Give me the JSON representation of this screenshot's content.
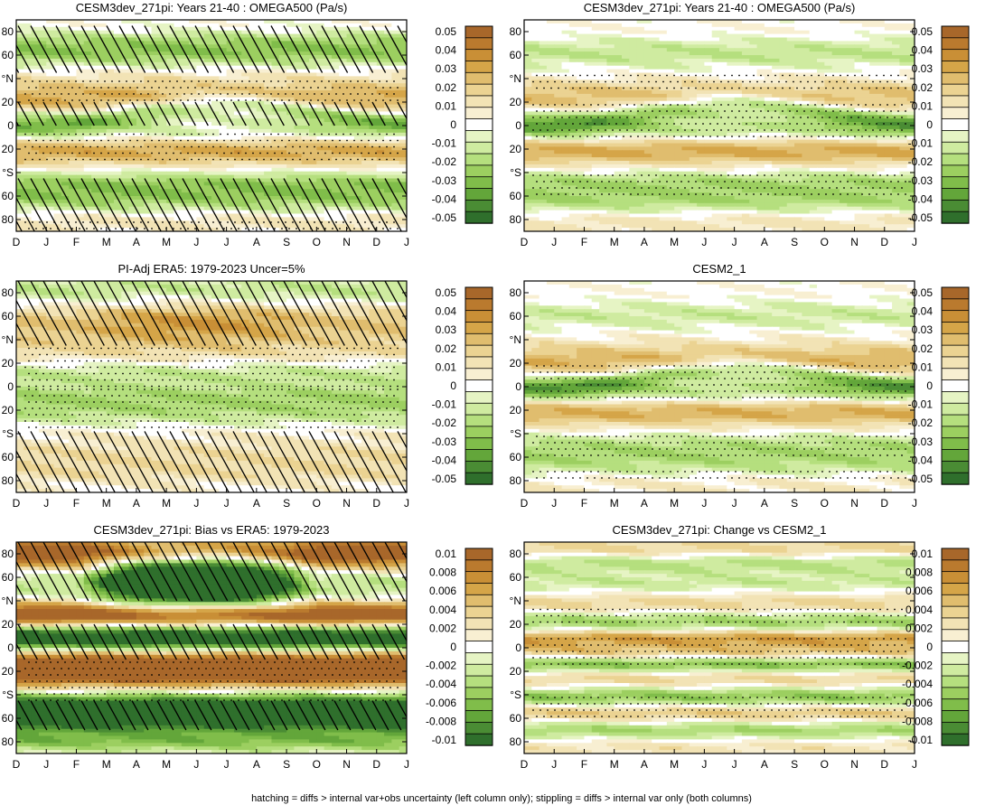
{
  "footer": "hatching = diffs > internal var+obs uncertainty (left column only); stippling = diffs > internal var only (both columns)",
  "colors": {
    "brown": [
      "#a8672a",
      "#ba7a2e",
      "#c98f36",
      "#d5a548",
      "#e0bd6e",
      "#ebd392",
      "#f2e3b5",
      "#f8efd2"
    ],
    "white": "#ffffff",
    "green": [
      "#e6f4c4",
      "#cfeba0",
      "#b5df7e",
      "#9ccf60",
      "#80bd4a",
      "#63a63a",
      "#4a8c34",
      "#2f6f2c"
    ]
  },
  "chart_data": [
    {
      "type": "heatmap",
      "title": "CESM3dev_271pi: Years 21-40 : OMEGA500 (Pa/s)",
      "xticks": [
        "D",
        "J",
        "F",
        "M",
        "A",
        "M",
        "J",
        "J",
        "A",
        "S",
        "O",
        "N",
        "D",
        "J"
      ],
      "yticks": [
        "80",
        "60",
        "°N",
        "20",
        "0",
        "20",
        "°S",
        "60",
        "80"
      ],
      "colorbar": [
        "0.05",
        "0.04",
        "0.03",
        "0.02",
        "0.01",
        "0",
        "-0.01",
        "-0.02",
        "-0.03",
        "-0.04",
        "-0.05"
      ],
      "vmax": 0.05,
      "bands": [
        {
          "lat": 82,
          "w": 6,
          "v": 0.005
        },
        {
          "lat": 70,
          "w": 10,
          "v": -0.012
        },
        {
          "lat": 60,
          "w": 10,
          "v": -0.018
        },
        {
          "lat": 48,
          "w": 8,
          "v": 0.008
        },
        {
          "lat": 34,
          "w": 8,
          "v": 0.004
        },
        {
          "lat": 22,
          "w": 10,
          "v": 0.025
        },
        {
          "lat": 10,
          "w": 7,
          "v": -0.03,
          "mig": 8
        },
        {
          "lat": -8,
          "w": 8,
          "v": -0.018
        },
        {
          "lat": -20,
          "w": 10,
          "v": 0.032
        },
        {
          "lat": -36,
          "w": 6,
          "v": 0.003
        },
        {
          "lat": -50,
          "w": 10,
          "v": -0.02
        },
        {
          "lat": -65,
          "w": 10,
          "v": -0.015
        },
        {
          "lat": -80,
          "w": 8,
          "v": 0.012
        }
      ],
      "hatch": [
        [
          45,
          85
        ],
        [
          0,
          20
        ],
        [
          -90,
          -45
        ]
      ],
      "stipple": [
        [
          20,
          40
        ],
        [
          -30,
          -5
        ],
        [
          -90,
          -80
        ]
      ]
    },
    {
      "type": "heatmap",
      "title": "CESM3dev_271pi: Years 21-40 : OMEGA500 (Pa/s)",
      "xticks": [
        "D",
        "J",
        "F",
        "M",
        "A",
        "M",
        "J",
        "J",
        "A",
        "S",
        "O",
        "N",
        "D",
        "J"
      ],
      "yticks": [
        "80",
        "60",
        "°N",
        "20",
        "0",
        "20",
        "°S",
        "60",
        "80"
      ],
      "colorbar": [
        "0.05",
        "0.04",
        "0.03",
        "0.02",
        "0.01",
        "0",
        "-0.01",
        "-0.02",
        "-0.03",
        "-0.04",
        "-0.05"
      ],
      "vmax": 0.05,
      "bands": [
        {
          "lat": 80,
          "w": 6,
          "v": 0.004
        },
        {
          "lat": 60,
          "w": 12,
          "v": -0.012
        },
        {
          "lat": 46,
          "w": 8,
          "v": 0.004
        },
        {
          "lat": 24,
          "w": 10,
          "v": 0.022
        },
        {
          "lat": 10,
          "w": 7,
          "v": -0.03,
          "mig": 8
        },
        {
          "lat": -6,
          "w": 8,
          "v": -0.02
        },
        {
          "lat": -20,
          "w": 10,
          "v": 0.03
        },
        {
          "lat": -36,
          "w": 6,
          "v": 0.002
        },
        {
          "lat": -50,
          "w": 10,
          "v": -0.018
        },
        {
          "lat": -66,
          "w": 8,
          "v": -0.012
        },
        {
          "lat": -82,
          "w": 8,
          "v": 0.01
        }
      ],
      "hatch": [],
      "stipple": [
        [
          -10,
          20
        ],
        [
          -60,
          -40
        ],
        [
          30,
          45
        ]
      ]
    },
    {
      "type": "heatmap",
      "title": "PI-Adj ERA5: 1979-2023 Uncer=5%",
      "xticks": [
        "D",
        "J",
        "F",
        "M",
        "A",
        "M",
        "J",
        "J",
        "A",
        "S",
        "O",
        "N",
        "D",
        "J"
      ],
      "yticks": [
        "80",
        "60",
        "°N",
        "20",
        "0",
        "20",
        "°S",
        "60",
        "80"
      ],
      "colorbar": [
        "0.05",
        "0.04",
        "0.03",
        "0.02",
        "0.01",
        "0",
        "-0.01",
        "-0.02",
        "-0.03",
        "-0.04",
        "-0.05"
      ],
      "vmax": 0.05,
      "bands": [
        {
          "lat": 80,
          "w": 10,
          "v": -0.015
        },
        {
          "lat": 55,
          "w": 14,
          "v": 0.02,
          "seas": 0.012
        },
        {
          "lat": 30,
          "w": 10,
          "v": 0.008
        },
        {
          "lat": 12,
          "w": 7,
          "v": -0.012
        },
        {
          "lat": -8,
          "w": 8,
          "v": -0.016
        },
        {
          "lat": -22,
          "w": 8,
          "v": -0.012
        },
        {
          "lat": -40,
          "w": 6,
          "v": 0.002
        },
        {
          "lat": -55,
          "w": 10,
          "v": 0.008
        },
        {
          "lat": -72,
          "w": 10,
          "v": 0.01
        }
      ],
      "hatch": [
        [
          35,
          90
        ],
        [
          -90,
          -38
        ]
      ],
      "stipple": [
        [
          0,
          35
        ],
        [
          -40,
          0
        ]
      ]
    },
    {
      "type": "heatmap",
      "title": "CESM2_1",
      "xticks": [
        "D",
        "J",
        "F",
        "M",
        "A",
        "M",
        "J",
        "J",
        "A",
        "S",
        "O",
        "N",
        "D",
        "J"
      ],
      "yticks": [
        "80",
        "60",
        "°N",
        "20",
        "0",
        "20",
        "°S",
        "60",
        "80"
      ],
      "colorbar": [
        "0.05",
        "0.04",
        "0.03",
        "0.02",
        "0.01",
        "0",
        "-0.01",
        "-0.02",
        "-0.03",
        "-0.04",
        "-0.05"
      ],
      "vmax": 0.05,
      "bands": [
        {
          "lat": 78,
          "w": 6,
          "v": 0.003
        },
        {
          "lat": 60,
          "w": 10,
          "v": -0.01
        },
        {
          "lat": 44,
          "w": 8,
          "v": 0.003
        },
        {
          "lat": 22,
          "w": 10,
          "v": 0.024
        },
        {
          "lat": 8,
          "w": 6,
          "v": -0.03,
          "mig": 8
        },
        {
          "lat": -6,
          "w": 8,
          "v": -0.022
        },
        {
          "lat": -20,
          "w": 10,
          "v": 0.028
        },
        {
          "lat": -36,
          "w": 6,
          "v": 0.002
        },
        {
          "lat": -52,
          "w": 10,
          "v": -0.016
        },
        {
          "lat": -68,
          "w": 8,
          "v": -0.01
        },
        {
          "lat": -82,
          "w": 8,
          "v": 0.008
        }
      ],
      "hatch": [],
      "stipple": [
        [
          -10,
          20
        ],
        [
          -60,
          -40
        ],
        [
          -80,
          -70
        ]
      ]
    },
    {
      "type": "heatmap",
      "title": "CESM3dev_271pi: Bias vs ERA5: 1979-2023",
      "xticks": [
        "D",
        "J",
        "F",
        "M",
        "A",
        "M",
        "J",
        "J",
        "A",
        "S",
        "O",
        "N",
        "D",
        "J"
      ],
      "yticks": [
        "80",
        "60",
        "°N",
        "20",
        "0",
        "20",
        "°S",
        "60",
        "80"
      ],
      "colorbar": [
        "0.01",
        "0.008",
        "0.006",
        "0.004",
        "0.002",
        "0",
        "-0.002",
        "-0.004",
        "-0.006",
        "-0.008",
        "-0.01"
      ],
      "vmax": 0.01,
      "bands": [
        {
          "lat": 80,
          "w": 10,
          "v": 0.012
        },
        {
          "lat": 58,
          "w": 16,
          "v": -0.003,
          "seas": -0.02
        },
        {
          "lat": 28,
          "w": 8,
          "v": 0.012
        },
        {
          "lat": 8,
          "w": 8,
          "v": -0.014
        },
        {
          "lat": -18,
          "w": 12,
          "v": 0.014
        },
        {
          "lat": -55,
          "w": 12,
          "v": -0.014
        },
        {
          "lat": -80,
          "w": 6,
          "v": -0.004
        }
      ],
      "hatch": [
        [
          40,
          90
        ],
        [
          -10,
          20
        ],
        [
          -70,
          -45
        ]
      ],
      "stipple": [
        [
          -45,
          -10
        ]
      ]
    },
    {
      "type": "heatmap",
      "title": "CESM3dev_271pi: Change vs CESM2_1",
      "xticks": [
        "D",
        "J",
        "F",
        "M",
        "A",
        "M",
        "J",
        "J",
        "A",
        "S",
        "O",
        "N",
        "D",
        "J"
      ],
      "yticks": [
        "80",
        "60",
        "°N",
        "20",
        "0",
        "20",
        "°S",
        "60",
        "80"
      ],
      "colorbar": [
        "0.01",
        "0.008",
        "0.006",
        "0.004",
        "0.002",
        "0",
        "-0.002",
        "-0.004",
        "-0.006",
        "-0.008",
        "-0.01"
      ],
      "vmax": 0.01,
      "bands": [
        {
          "lat": 85,
          "w": 6,
          "v": 0.003
        },
        {
          "lat": 72,
          "w": 6,
          "v": -0.003
        },
        {
          "lat": 55,
          "w": 6,
          "v": -0.002
        },
        {
          "lat": 38,
          "w": 6,
          "v": 0.003
        },
        {
          "lat": 22,
          "w": 6,
          "v": -0.004
        },
        {
          "lat": 8,
          "w": 5,
          "v": 0.006
        },
        {
          "lat": -4,
          "w": 5,
          "v": 0.004
        },
        {
          "lat": -14,
          "w": 5,
          "v": -0.006
        },
        {
          "lat": -26,
          "w": 6,
          "v": 0.003
        },
        {
          "lat": -42,
          "w": 6,
          "v": -0.005
        },
        {
          "lat": -56,
          "w": 6,
          "v": 0.004
        },
        {
          "lat": -70,
          "w": 6,
          "v": -0.004
        },
        {
          "lat": -84,
          "w": 6,
          "v": 0.002
        }
      ],
      "hatch": [],
      "stipple": [
        [
          -15,
          10
        ],
        [
          -60,
          -40
        ],
        [
          20,
          35
        ]
      ]
    }
  ]
}
